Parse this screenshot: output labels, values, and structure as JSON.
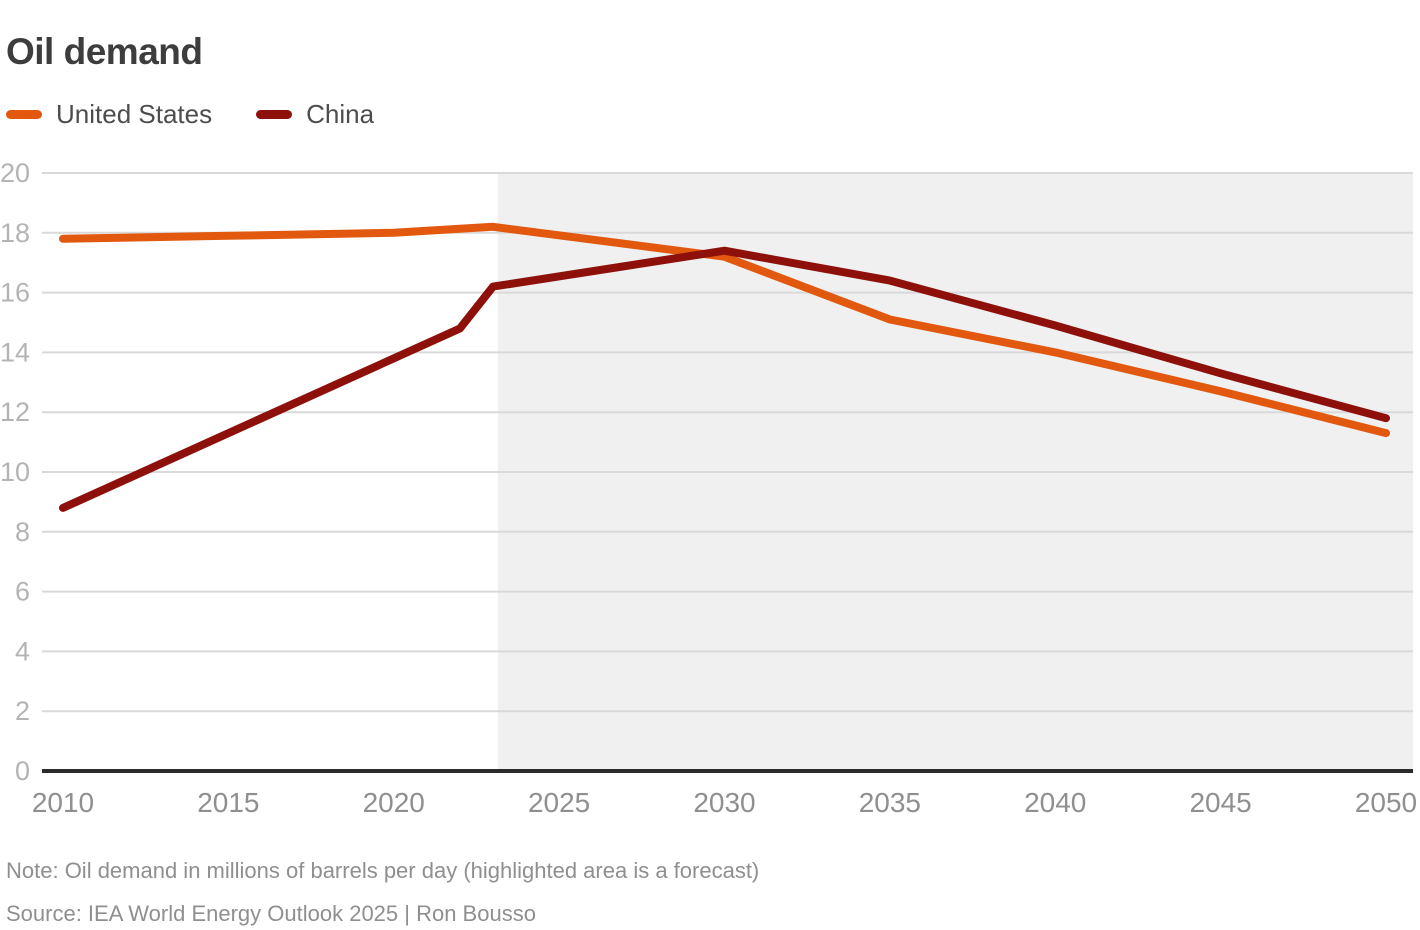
{
  "title": "Oil demand",
  "legend": [
    {
      "label": "United States",
      "color": "#e2580e"
    },
    {
      "label": "China",
      "color": "#8e100b"
    }
  ],
  "note": "Note: Oil demand in millions of barrels per day (highlighted area is a forecast)",
  "source": "Source: IEA World Energy Outlook 2025 | Ron Bousso",
  "chart_data": {
    "type": "line",
    "title": "Oil demand",
    "unit": "millions of barrels per day",
    "xlabel": "",
    "ylabel": "",
    "xlim": [
      2010,
      2050.8
    ],
    "ylim": [
      0,
      20
    ],
    "x_ticks": [
      2010,
      2015,
      2020,
      2025,
      2030,
      2035,
      2040,
      2045,
      2050
    ],
    "y_ticks": [
      0,
      2,
      4,
      6,
      8,
      10,
      12,
      14,
      16,
      18,
      20
    ],
    "grid": true,
    "legend_position": "top-left",
    "forecast_start": 2023.15,
    "forecast_note": "highlighted area is a forecast",
    "colors": {
      "forecast_shade": "#f0f0f0",
      "gridline": "#d9d9d9",
      "zero_axis": "#2b2b2b",
      "y_tick_label": "#b4b4b4",
      "x_tick_label": "#8f8f8f"
    },
    "series": [
      {
        "name": "United States",
        "color": "#e2580e",
        "points": [
          [
            2010,
            17.8
          ],
          [
            2015,
            17.9
          ],
          [
            2020,
            18.0
          ],
          [
            2023,
            18.2
          ],
          [
            2030,
            17.2
          ],
          [
            2035,
            15.1
          ],
          [
            2040,
            14.0
          ],
          [
            2045,
            12.7
          ],
          [
            2050,
            11.3
          ]
        ]
      },
      {
        "name": "China",
        "color": "#8e100b",
        "points": [
          [
            2010,
            8.8
          ],
          [
            2022,
            14.8
          ],
          [
            2023,
            16.2
          ],
          [
            2030,
            17.4
          ],
          [
            2035,
            16.4
          ],
          [
            2040,
            14.9
          ],
          [
            2045,
            13.3
          ],
          [
            2050,
            11.8
          ]
        ]
      }
    ]
  }
}
